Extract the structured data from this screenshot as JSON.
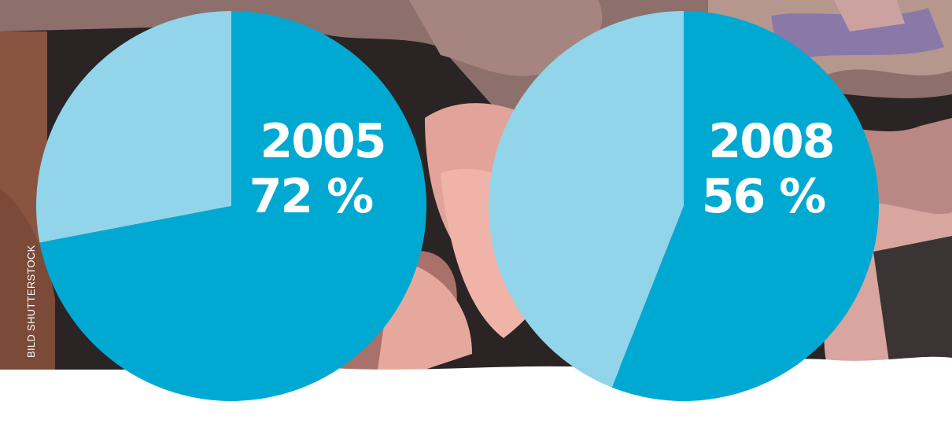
{
  "photo_credit": "BILD SHUTTERSTOCK",
  "colors": {
    "primary_slice": "#00a9d2",
    "secondary_slice": "#92d4ea",
    "label": "#ffffff"
  },
  "chart_data": [
    {
      "type": "pie",
      "year": "2005",
      "percent_label": "72 %",
      "values": [
        72,
        28
      ]
    },
    {
      "type": "pie",
      "year": "2008",
      "percent_label": "56 %",
      "values": [
        56,
        44
      ]
    }
  ]
}
